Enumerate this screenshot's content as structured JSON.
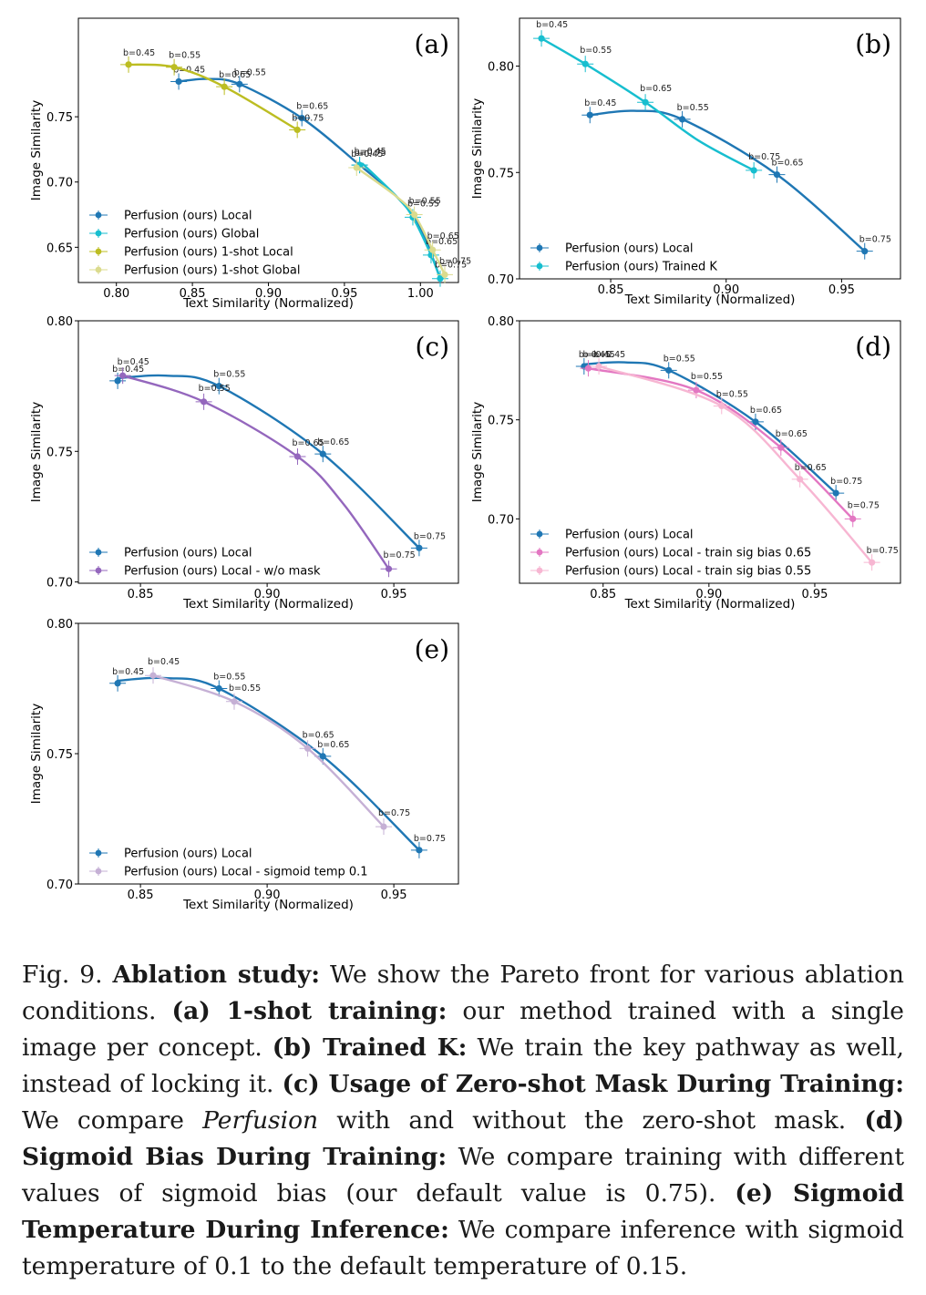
{
  "chart_data": [
    {
      "type": "line",
      "panel_label": "(a)",
      "xlabel": "Text Similarity (Normalized)",
      "ylabel": "Image Similarity",
      "xlim": [
        0.775,
        1.025
      ],
      "ylim": [
        0.623,
        0.8255
      ],
      "xticks": [
        0.8,
        0.85,
        0.9,
        0.95,
        1.0
      ],
      "xtick_labels": [
        "0.80",
        "0.85",
        "0.90",
        "0.95",
        "1.00"
      ],
      "yticks": [
        0.65,
        0.7,
        0.75
      ],
      "ytick_labels": [
        "0.65",
        "0.70",
        "0.75"
      ],
      "legend": "lower-left",
      "series": [
        {
          "name": "Perfusion (ours) Local",
          "color": "#1f77b4",
          "points": [
            {
              "x": 0.841,
              "y": 0.777,
              "label": "b=0.45"
            },
            {
              "x": 0.881,
              "y": 0.775,
              "label": "b=0.55"
            },
            {
              "x": 0.922,
              "y": 0.749,
              "label": "b=0.65"
            },
            {
              "x": 0.96,
              "y": 0.713,
              "label": "b=0.75"
            }
          ],
          "curve": [
            [
              0.841,
              0.777
            ],
            [
              0.86,
              0.779
            ],
            [
              0.881,
              0.775
            ],
            [
              0.922,
              0.749
            ],
            [
              0.96,
              0.713
            ],
            [
              0.985,
              0.688
            ],
            [
              1.0,
              0.665
            ],
            [
              1.013,
              0.626
            ]
          ]
        },
        {
          "name": "Perfusion (ours) Global",
          "color": "#17becf",
          "points": [
            {
              "x": 0.96,
              "y": 0.713,
              "label": "b=0.45"
            },
            {
              "x": 0.995,
              "y": 0.673,
              "label": "b=0.55"
            },
            {
              "x": 1.007,
              "y": 0.644,
              "label": "b=0.65"
            },
            {
              "x": 1.013,
              "y": 0.626,
              "label": "b=0.75"
            }
          ],
          "curve": [
            [
              0.962,
              0.714
            ],
            [
              0.985,
              0.688
            ],
            [
              0.995,
              0.673
            ],
            [
              1.007,
              0.644
            ],
            [
              1.013,
              0.626
            ]
          ]
        },
        {
          "name": "Perfusion (ours) 1-shot Local",
          "color": "#bcbd22",
          "points": [
            {
              "x": 0.808,
              "y": 0.79,
              "label": "b=0.45"
            },
            {
              "x": 0.838,
              "y": 0.788,
              "label": "b=0.55"
            },
            {
              "x": 0.871,
              "y": 0.773,
              "label": "b=0.65"
            },
            {
              "x": 0.919,
              "y": 0.74,
              "label": "b=0.75"
            }
          ],
          "curve": [
            [
              0.808,
              0.79
            ],
            [
              0.838,
              0.788
            ],
            [
              0.871,
              0.773
            ],
            [
              0.919,
              0.74
            ]
          ]
        },
        {
          "name": "Perfusion (ours) 1-shot Global",
          "color": "#dbdb8d",
          "points": [
            {
              "x": 0.958,
              "y": 0.711,
              "label": "b=0.45"
            },
            {
              "x": 0.996,
              "y": 0.675,
              "label": "b=0.55"
            },
            {
              "x": 1.008,
              "y": 0.648,
              "label": "b=0.65"
            },
            {
              "x": 1.016,
              "y": 0.629,
              "label": "b=0.75"
            }
          ],
          "curve": [
            [
              0.958,
              0.711
            ],
            [
              0.983,
              0.69
            ],
            [
              0.996,
              0.675
            ],
            [
              1.008,
              0.648
            ],
            [
              1.016,
              0.629
            ]
          ]
        }
      ]
    },
    {
      "type": "line",
      "panel_label": "(b)",
      "xlabel": "Text Similarity (Normalized)",
      "ylabel": "Image Similarity",
      "xlim": [
        0.8105,
        0.9755
      ],
      "ylim": [
        0.7,
        0.8225
      ],
      "xticks": [
        0.85,
        0.9,
        0.95
      ],
      "xtick_labels": [
        "0.85",
        "0.90",
        "0.95"
      ],
      "yticks": [
        0.7,
        0.75,
        0.8
      ],
      "ytick_labels": [
        "0.70",
        "0.75",
        "0.80"
      ],
      "legend": "lower-left",
      "series": [
        {
          "name": "Perfusion (ours) Local",
          "color": "#1f77b4",
          "points": [
            {
              "x": 0.841,
              "y": 0.777,
              "label": "b=0.45"
            },
            {
              "x": 0.881,
              "y": 0.775,
              "label": "b=0.55"
            },
            {
              "x": 0.922,
              "y": 0.749,
              "label": "b=0.65"
            },
            {
              "x": 0.96,
              "y": 0.713,
              "label": "b=0.75"
            }
          ],
          "curve": [
            [
              0.841,
              0.777
            ],
            [
              0.86,
              0.779
            ],
            [
              0.881,
              0.775
            ],
            [
              0.922,
              0.749
            ],
            [
              0.96,
              0.713
            ]
          ]
        },
        {
          "name": "Perfusion (ours) Trained K",
          "color": "#17becf",
          "points": [
            {
              "x": 0.82,
              "y": 0.813,
              "label": "b=0.45"
            },
            {
              "x": 0.839,
              "y": 0.801,
              "label": "b=0.55"
            },
            {
              "x": 0.865,
              "y": 0.783,
              "label": "b=0.65"
            },
            {
              "x": 0.912,
              "y": 0.751,
              "label": "b=0.75"
            }
          ],
          "curve": [
            [
              0.82,
              0.813
            ],
            [
              0.839,
              0.801
            ],
            [
              0.865,
              0.783
            ],
            [
              0.888,
              0.765
            ],
            [
              0.912,
              0.751
            ]
          ]
        }
      ]
    },
    {
      "type": "line",
      "panel_label": "(c)",
      "xlabel": "Text Similarity (Normalized)",
      "ylabel": "Image Similarity",
      "xlim": [
        0.8255,
        0.9755
      ],
      "ylim": [
        0.6995,
        0.8
      ],
      "xticks": [
        0.85,
        0.9,
        0.95
      ],
      "xtick_labels": [
        "0.85",
        "0.90",
        "0.95"
      ],
      "yticks": [
        0.7,
        0.75,
        0.8
      ],
      "ytick_labels": [
        "0.70",
        "0.75",
        "0.80"
      ],
      "legend": "lower-left",
      "series": [
        {
          "name": "Perfusion (ours) Local",
          "color": "#1f77b4",
          "points": [
            {
              "x": 0.841,
              "y": 0.777,
              "label": "b=0.45"
            },
            {
              "x": 0.881,
              "y": 0.775,
              "label": "b=0.55"
            },
            {
              "x": 0.922,
              "y": 0.749,
              "label": "b=0.65"
            },
            {
              "x": 0.96,
              "y": 0.713,
              "label": "b=0.75"
            }
          ],
          "curve": [
            [
              0.841,
              0.778
            ],
            [
              0.86,
              0.779
            ],
            [
              0.881,
              0.775
            ],
            [
              0.922,
              0.749
            ],
            [
              0.96,
              0.713
            ]
          ]
        },
        {
          "name": "Perfusion (ours) Local - w/o mask",
          "color": "#9467bd",
          "points": [
            {
              "x": 0.843,
              "y": 0.779,
              "label": "b=0.45"
            },
            {
              "x": 0.875,
              "y": 0.769,
              "label": "b=0.55"
            },
            {
              "x": 0.912,
              "y": 0.748,
              "label": "b=0.65"
            },
            {
              "x": 0.948,
              "y": 0.705,
              "label": "b=0.75"
            }
          ],
          "curve": [
            [
              0.843,
              0.779
            ],
            [
              0.875,
              0.769
            ],
            [
              0.912,
              0.748
            ],
            [
              0.93,
              0.73
            ],
            [
              0.948,
              0.705
            ]
          ]
        }
      ]
    },
    {
      "type": "line",
      "panel_label": "(d)",
      "xlabel": "Text Similarity (Normalized)",
      "ylabel": "Image Similarity",
      "xlim": [
        0.8105,
        0.9905
      ],
      "ylim": [
        0.6675,
        0.8
      ],
      "xticks": [
        0.85,
        0.9,
        0.95
      ],
      "xtick_labels": [
        "0.85",
        "0.90",
        "0.95"
      ],
      "yticks": [
        0.7,
        0.75,
        0.8
      ],
      "ytick_labels": [
        "0.70",
        "0.75",
        "0.80"
      ],
      "legend": "lower-left",
      "series": [
        {
          "name": "Perfusion (ours) Local",
          "color": "#1f77b4",
          "points": [
            {
              "x": 0.841,
              "y": 0.777,
              "label": "b=0.45"
            },
            {
              "x": 0.881,
              "y": 0.775,
              "label": "b=0.55"
            },
            {
              "x": 0.922,
              "y": 0.749,
              "label": "b=0.65"
            },
            {
              "x": 0.96,
              "y": 0.713,
              "label": "b=0.75"
            }
          ],
          "curve": [
            [
              0.841,
              0.778
            ],
            [
              0.86,
              0.779
            ],
            [
              0.881,
              0.775
            ],
            [
              0.922,
              0.749
            ],
            [
              0.96,
              0.713
            ]
          ]
        },
        {
          "name": "Perfusion (ours) Local - train sig bias 0.65",
          "color": "#e377c2",
          "points": [
            {
              "x": 0.843,
              "y": 0.776,
              "label": "b=0.45"
            },
            {
              "x": 0.894,
              "y": 0.765,
              "label": "b=0.55"
            },
            {
              "x": 0.934,
              "y": 0.736,
              "label": "b=0.65"
            },
            {
              "x": 0.968,
              "y": 0.7,
              "label": "b=0.75"
            }
          ],
          "curve": [
            [
              0.843,
              0.776
            ],
            [
              0.894,
              0.765
            ],
            [
              0.934,
              0.736
            ],
            [
              0.968,
              0.7
            ]
          ]
        },
        {
          "name": "Perfusion (ours) Local - train sig bias 0.55",
          "color": "#f7b6d2",
          "points": [
            {
              "x": 0.848,
              "y": 0.777,
              "label": "b=0.45"
            },
            {
              "x": 0.906,
              "y": 0.757,
              "label": "b=0.55"
            },
            {
              "x": 0.943,
              "y": 0.72,
              "label": "b=0.65"
            },
            {
              "x": 0.977,
              "y": 0.678,
              "label": "b=0.75"
            }
          ],
          "curve": [
            [
              0.848,
              0.777
            ],
            [
              0.906,
              0.757
            ],
            [
              0.943,
              0.72
            ],
            [
              0.977,
              0.678
            ]
          ]
        }
      ]
    },
    {
      "type": "line",
      "panel_label": "(e)",
      "xlabel": "Text Similarity (Normalized)",
      "ylabel": "Image Similarity",
      "xlim": [
        0.8255,
        0.9755
      ],
      "ylim": [
        0.7,
        0.8
      ],
      "xticks": [
        0.85,
        0.9,
        0.95
      ],
      "xtick_labels": [
        "0.85",
        "0.90",
        "0.95"
      ],
      "yticks": [
        0.7,
        0.75,
        0.8
      ],
      "ytick_labels": [
        "0.70",
        "0.75",
        "0.80"
      ],
      "legend": "lower-left",
      "series": [
        {
          "name": "Perfusion (ours) Local",
          "color": "#1f77b4",
          "points": [
            {
              "x": 0.841,
              "y": 0.777,
              "label": "b=0.45"
            },
            {
              "x": 0.881,
              "y": 0.775,
              "label": "b=0.55"
            },
            {
              "x": 0.922,
              "y": 0.749,
              "label": "b=0.65"
            },
            {
              "x": 0.96,
              "y": 0.713,
              "label": "b=0.75"
            }
          ],
          "curve": [
            [
              0.841,
              0.778
            ],
            [
              0.86,
              0.779
            ],
            [
              0.881,
              0.775
            ],
            [
              0.922,
              0.749
            ],
            [
              0.96,
              0.713
            ]
          ]
        },
        {
          "name": "Perfusion (ours) Local - sigmoid temp 0.1",
          "color": "#c5b0d5",
          "points": [
            {
              "x": 0.855,
              "y": 0.78,
              "label": "b=0.45"
            },
            {
              "x": 0.887,
              "y": 0.77,
              "label": "b=0.55"
            },
            {
              "x": 0.916,
              "y": 0.752,
              "label": "b=0.65"
            },
            {
              "x": 0.946,
              "y": 0.722,
              "label": "b=0.75"
            }
          ],
          "curve": [
            [
              0.855,
              0.78
            ],
            [
              0.887,
              0.77
            ],
            [
              0.916,
              0.752
            ],
            [
              0.946,
              0.722
            ]
          ]
        }
      ]
    }
  ],
  "caption": {
    "fig_label": "Fig. 9.",
    "title": "Ablation study:",
    "intro": "We show the Pareto front for various ablation conditions.",
    "a_head": "(a) 1-shot training:",
    "a_text": "our method trained with a single image per concept.",
    "b_head": "(b) Trained K:",
    "b_text": "We train the key pathway as well, instead of locking it.",
    "c_head": "(c) Usage of Zero-shot Mask During Training:",
    "c_text1": "We compare",
    "c_italic": "Perfusion",
    "c_text2": "with and without the zero-shot mask.",
    "d_head": "(d) Sigmoid Bias During Training:",
    "d_text": "We compare training with different values of sigmoid bias (our default value is 0.75).",
    "e_head": "(e) Sigmoid Temperature During Inference:",
    "e_text": "We compare inference with sigmoid temperature of 0.1 to the default temperature of 0.15."
  }
}
